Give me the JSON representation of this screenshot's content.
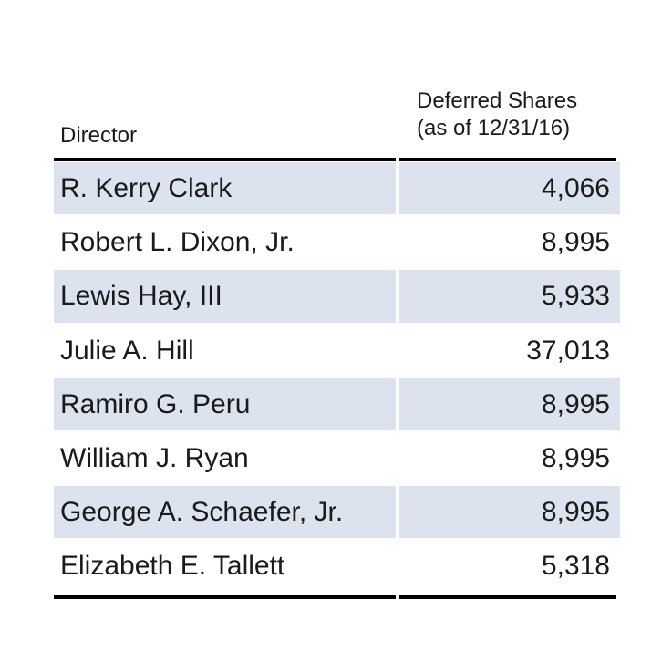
{
  "table": {
    "header": {
      "director": "Director",
      "shares_line1": "Deferred Shares",
      "shares_line2": "(as of 12/31/16)"
    },
    "rows": [
      {
        "director": "R. Kerry Clark",
        "shares": "4,066"
      },
      {
        "director": "Robert L. Dixon, Jr.",
        "shares": "8,995"
      },
      {
        "director": "Lewis Hay, III",
        "shares": "5,933"
      },
      {
        "director": "Julie A. Hill",
        "shares": "37,013"
      },
      {
        "director": "Ramiro G. Peru",
        "shares": "8,995"
      },
      {
        "director": "William J. Ryan",
        "shares": "8,995"
      },
      {
        "director": "George A. Schaefer, Jr.",
        "shares": "8,995"
      },
      {
        "director": "Elizabeth E. Tallett",
        "shares": "5,318"
      }
    ]
  },
  "colors": {
    "shaded_row": "#dce3ef",
    "rule": "#000000"
  }
}
